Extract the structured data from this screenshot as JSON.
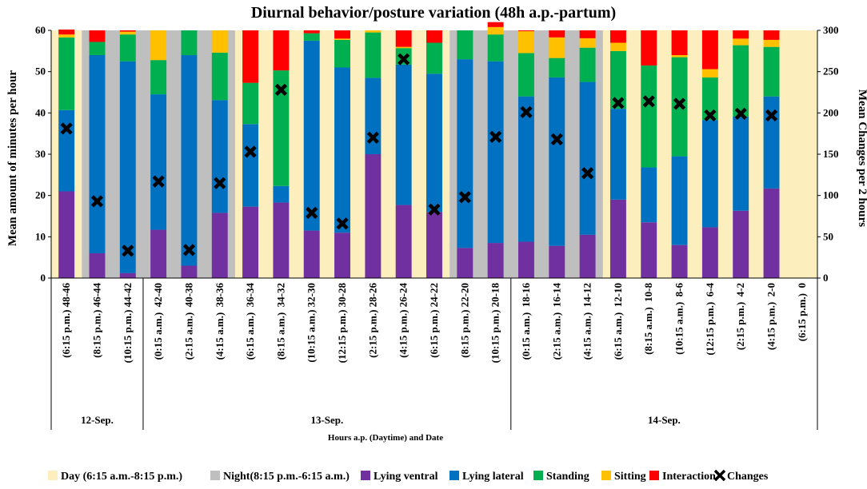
{
  "chart_data": {
    "type": "bar",
    "title": "Diurnal behavior/posture variation (48h a.p.-partum)",
    "ylabel": "Mean amount of minutes per hour",
    "y2label": "Mean Changes per 2 hours",
    "xlabel": "Hours a.p. (Daytime) and Date",
    "ylim": [
      0,
      60
    ],
    "y2lim": [
      0,
      300
    ],
    "yticks": [
      0,
      10,
      20,
      30,
      40,
      50,
      60
    ],
    "y2ticks": [
      0,
      50,
      100,
      150,
      200,
      250,
      300
    ],
    "categories": [
      "(6:15 p.m.) 48-46",
      "(8:15 p.m.) 46-44",
      "(10:15 p.m.) 44-42",
      "(0:15 a.m.)  42-40",
      "(2:15 a.m.)  40-38",
      "(4:15 a.m.)  38-36",
      "(6:15 a.m.)  36-34",
      "(8:15 a.m.)  34-32",
      "(10:15 a.m.) 32-30",
      "(12:15 p.m.) 30-28",
      "(2:15 p.m.) 28-26",
      "(4:15 p.m.) 26-24",
      "(6:15 p.m.) 24-22",
      "(8:15 p.m.) 22-20",
      "(10:15 p.m.) 20-18",
      "(0:15 a.m.)  18-16",
      "(2:15 a.m.)  16-14",
      "(4:15 a.m.)  14-12",
      "(6:15 a.m.)  12-10",
      "(8:15 a.m.)  10-8",
      "(10:15 a.m.)  8-6",
      "(12:15 p.m.)  6-4",
      "(2:15 p.m.)  4-2",
      "(4:15 p.m.)  2-0",
      "(6:15 p.m.)  0"
    ],
    "period": [
      "day",
      "night",
      "night",
      "night",
      "night",
      "night",
      "day",
      "day",
      "day",
      "day",
      "day",
      "day",
      "day",
      "night",
      "night",
      "night",
      "night",
      "night",
      "day",
      "day",
      "day",
      "day",
      "day",
      "day",
      "day"
    ],
    "dates": [
      {
        "label": "12-Sep.",
        "from": 0,
        "to": 2
      },
      {
        "label": "13-Sep.",
        "from": 3,
        "to": 14
      },
      {
        "label": "14-Sep.",
        "from": 15,
        "to": 24
      }
    ],
    "series": [
      {
        "name": "Lying ventral",
        "color": "#7030a0",
        "values": [
          21,
          6,
          1.2,
          11.7,
          3,
          15.8,
          17.3,
          18.3,
          11.5,
          11,
          30,
          17.7,
          16,
          7.3,
          8.5,
          8.8,
          7.8,
          10.5,
          19,
          13.5,
          8,
          12.3,
          16.3,
          21.7,
          0
        ]
      },
      {
        "name": "Lying lateral",
        "color": "#0070c0",
        "values": [
          19.7,
          48,
          51.3,
          32.8,
          51,
          27.3,
          20,
          4,
          46,
          40,
          18.5,
          34,
          33.5,
          45.7,
          44,
          35.2,
          40.8,
          37,
          22,
          13.3,
          21.5,
          26,
          22.8,
          22.3,
          0
        ]
      },
      {
        "name": "Standing",
        "color": "#00b050",
        "values": [
          17.6,
          3.2,
          6.5,
          8.3,
          6,
          11.5,
          10,
          28,
          1.8,
          6.7,
          11,
          4,
          7.5,
          7,
          6.5,
          10.5,
          4.7,
          8.3,
          14,
          24.7,
          24,
          10.3,
          17.3,
          12,
          0
        ]
      },
      {
        "name": "Sitting",
        "color": "#ffc000",
        "values": [
          0.7,
          0,
          0.7,
          7.2,
          0,
          5.4,
          0,
          0,
          0,
          0.3,
          0.5,
          0.3,
          0,
          0,
          1.8,
          5.3,
          5,
          2.3,
          2,
          0,
          0.5,
          2,
          1.6,
          1.7,
          0
        ]
      },
      {
        "name": "Interaction",
        "color": "#ff0000",
        "values": [
          1.2,
          2.8,
          0.3,
          0,
          0,
          0,
          12.7,
          9.7,
          0.7,
          2,
          0,
          4,
          3,
          0,
          1.2,
          0.2,
          1.7,
          1.9,
          3,
          8.5,
          6,
          9.4,
          2,
          2.3,
          0
        ]
      }
    ],
    "changes": {
      "name": "Changes",
      "values": [
        181,
        93,
        33,
        117,
        34,
        115,
        153,
        228,
        79,
        66,
        170,
        265,
        83,
        98,
        171,
        201,
        168,
        127,
        212,
        214,
        211,
        197,
        199,
        197,
        null
      ]
    },
    "legend": [
      {
        "label": "Day (6:15 a.m.-8:15 p.m.)",
        "kind": "rect",
        "color": "#fdeebe"
      },
      {
        "label": "Night(8:15 p.m.-6:15 a.m.)",
        "kind": "rect",
        "color": "#bfbfbf"
      },
      {
        "label": "Lying ventral",
        "kind": "rect",
        "color": "#7030a0"
      },
      {
        "label": "Lying lateral",
        "kind": "rect",
        "color": "#0070c0"
      },
      {
        "label": "Standing",
        "kind": "rect",
        "color": "#00b050"
      },
      {
        "label": "Sitting",
        "kind": "rect",
        "color": "#ffc000"
      },
      {
        "label": "Interaction",
        "kind": "rect",
        "color": "#ff0000"
      },
      {
        "label": "Changes",
        "kind": "cross",
        "color": "#000000"
      }
    ],
    "colors": {
      "day": "#fdeebe",
      "night": "#bfbfbf"
    }
  }
}
